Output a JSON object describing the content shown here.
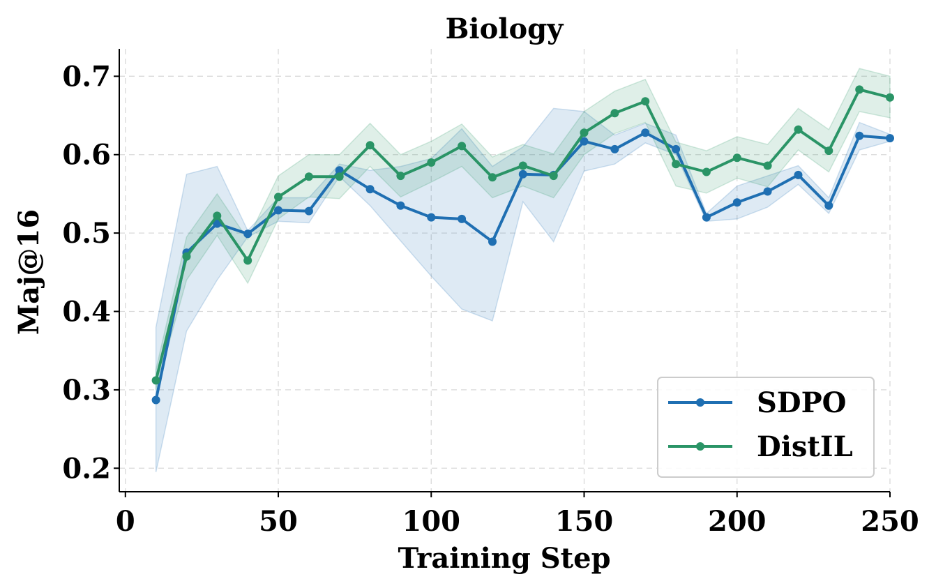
{
  "chart_data": {
    "type": "line",
    "title": "Biology",
    "xlabel": "Training Step",
    "ylabel": "Maj@16",
    "xlim": [
      -2,
      250
    ],
    "ylim": [
      0.17,
      0.735
    ],
    "xticks": [
      0,
      50,
      100,
      150,
      200,
      250
    ],
    "yticks": [
      0.2,
      0.3,
      0.4,
      0.5,
      0.6,
      0.7
    ],
    "xtick_labels": [
      "0",
      "50",
      "100",
      "150",
      "200",
      "250"
    ],
    "ytick_labels": [
      "0.2",
      "0.3",
      "0.4",
      "0.5",
      "0.6",
      "0.7"
    ],
    "grid": true,
    "legend_position": "bottom-right",
    "series": [
      {
        "name": "SDPO",
        "color": "#1f6fb2",
        "x": [
          10,
          20,
          30,
          40,
          50,
          60,
          70,
          80,
          90,
          100,
          110,
          120,
          130,
          140,
          150,
          160,
          170,
          180,
          190,
          200,
          210,
          220,
          230,
          240,
          250
        ],
        "y": [
          0.287,
          0.475,
          0.512,
          0.499,
          0.529,
          0.528,
          0.58,
          0.556,
          0.535,
          0.52,
          0.518,
          0.489,
          0.575,
          0.574,
          0.617,
          0.607,
          0.628,
          0.607,
          0.52,
          0.539,
          0.553,
          0.574,
          0.535,
          0.624,
          0.621
        ],
        "lower": [
          0.195,
          0.375,
          0.44,
          0.495,
          0.515,
          0.513,
          0.572,
          0.535,
          0.49,
          0.445,
          0.403,
          0.388,
          0.54,
          0.489,
          0.579,
          0.588,
          0.615,
          0.6,
          0.515,
          0.518,
          0.533,
          0.562,
          0.525,
          0.606,
          0.617
        ],
        "upper": [
          0.38,
          0.575,
          0.585,
          0.503,
          0.545,
          0.545,
          0.588,
          0.58,
          0.585,
          0.595,
          0.633,
          0.585,
          0.61,
          0.659,
          0.655,
          0.625,
          0.64,
          0.625,
          0.525,
          0.56,
          0.573,
          0.586,
          0.545,
          0.641,
          0.626
        ]
      },
      {
        "name": "DistIL",
        "color": "#2a9466",
        "x": [
          10,
          20,
          30,
          40,
          50,
          60,
          70,
          80,
          90,
          100,
          110,
          120,
          130,
          140,
          150,
          160,
          170,
          180,
          190,
          200,
          210,
          220,
          230,
          240,
          250
        ],
        "y": [
          0.312,
          0.47,
          0.522,
          0.465,
          0.546,
          0.572,
          0.572,
          0.612,
          0.573,
          0.59,
          0.611,
          0.571,
          0.586,
          0.573,
          0.628,
          0.653,
          0.668,
          0.588,
          0.578,
          0.596,
          0.586,
          0.632,
          0.605,
          0.683,
          0.673
        ],
        "lower": [
          0.3,
          0.44,
          0.497,
          0.436,
          0.518,
          0.546,
          0.544,
          0.585,
          0.546,
          0.565,
          0.585,
          0.545,
          0.56,
          0.545,
          0.6,
          0.627,
          0.641,
          0.56,
          0.551,
          0.57,
          0.559,
          0.606,
          0.578,
          0.655,
          0.647
        ],
        "upper": [
          0.326,
          0.495,
          0.55,
          0.492,
          0.573,
          0.6,
          0.6,
          0.64,
          0.6,
          0.617,
          0.639,
          0.597,
          0.613,
          0.601,
          0.655,
          0.681,
          0.696,
          0.616,
          0.605,
          0.623,
          0.613,
          0.659,
          0.632,
          0.71,
          0.7
        ]
      }
    ]
  }
}
